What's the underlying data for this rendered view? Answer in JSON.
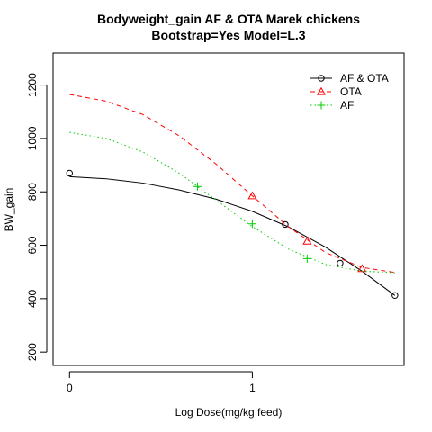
{
  "chart_data": {
    "type": "line",
    "title": "Bodyweight_gain AF & OTA Marek chickens",
    "subtitle": "Bootstrap=Yes Model=L.3",
    "xlabel": "Log Dose(mg/kg feed)",
    "ylabel": "BW_gain",
    "xlim": [
      -0.09,
      1.83
    ],
    "ylim": [
      150,
      1320
    ],
    "x_ticks": [
      0,
      1
    ],
    "y_ticks": [
      200,
      400,
      600,
      800,
      1000,
      1200
    ],
    "legend_position": "top-right",
    "series": [
      {
        "name": "AF & OTA",
        "color": "#000000",
        "marker": "circle",
        "line_style": "solid",
        "points": [
          {
            "x": 0,
            "y": 870
          },
          {
            "x": 1.18,
            "y": 678
          },
          {
            "x": 1.48,
            "y": 533
          },
          {
            "x": 1.78,
            "y": 412
          }
        ],
        "curve": [
          {
            "x": 0,
            "y": 857
          },
          {
            "x": 0.2,
            "y": 849
          },
          {
            "x": 0.4,
            "y": 833
          },
          {
            "x": 0.6,
            "y": 807
          },
          {
            "x": 0.8,
            "y": 773
          },
          {
            "x": 1.0,
            "y": 727
          },
          {
            "x": 1.2,
            "y": 668
          },
          {
            "x": 1.4,
            "y": 593
          },
          {
            "x": 1.6,
            "y": 503
          },
          {
            "x": 1.78,
            "y": 412
          }
        ]
      },
      {
        "name": "OTA",
        "color": "#ff0000",
        "marker": "triangle",
        "line_style": "dashed",
        "points": [
          {
            "x": 1.0,
            "y": 785
          },
          {
            "x": 1.3,
            "y": 615
          },
          {
            "x": 1.6,
            "y": 512
          }
        ],
        "curve": [
          {
            "x": 0,
            "y": 1165
          },
          {
            "x": 0.2,
            "y": 1140
          },
          {
            "x": 0.4,
            "y": 1090
          },
          {
            "x": 0.6,
            "y": 1010
          },
          {
            "x": 0.8,
            "y": 905
          },
          {
            "x": 1.0,
            "y": 785
          },
          {
            "x": 1.2,
            "y": 668
          },
          {
            "x": 1.4,
            "y": 573
          },
          {
            "x": 1.6,
            "y": 517
          },
          {
            "x": 1.78,
            "y": 498
          }
        ]
      },
      {
        "name": "AF",
        "color": "#00cc00",
        "marker": "plus",
        "line_style": "dotted",
        "points": [
          {
            "x": 0.7,
            "y": 820
          },
          {
            "x": 1.0,
            "y": 680
          },
          {
            "x": 1.3,
            "y": 550
          }
        ],
        "curve": [
          {
            "x": 0,
            "y": 1023
          },
          {
            "x": 0.2,
            "y": 1000
          },
          {
            "x": 0.4,
            "y": 950
          },
          {
            "x": 0.6,
            "y": 870
          },
          {
            "x": 0.8,
            "y": 770
          },
          {
            "x": 1.0,
            "y": 670
          },
          {
            "x": 1.2,
            "y": 585
          },
          {
            "x": 1.4,
            "y": 528
          },
          {
            "x": 1.6,
            "y": 503
          },
          {
            "x": 1.78,
            "y": 497
          }
        ]
      }
    ]
  }
}
